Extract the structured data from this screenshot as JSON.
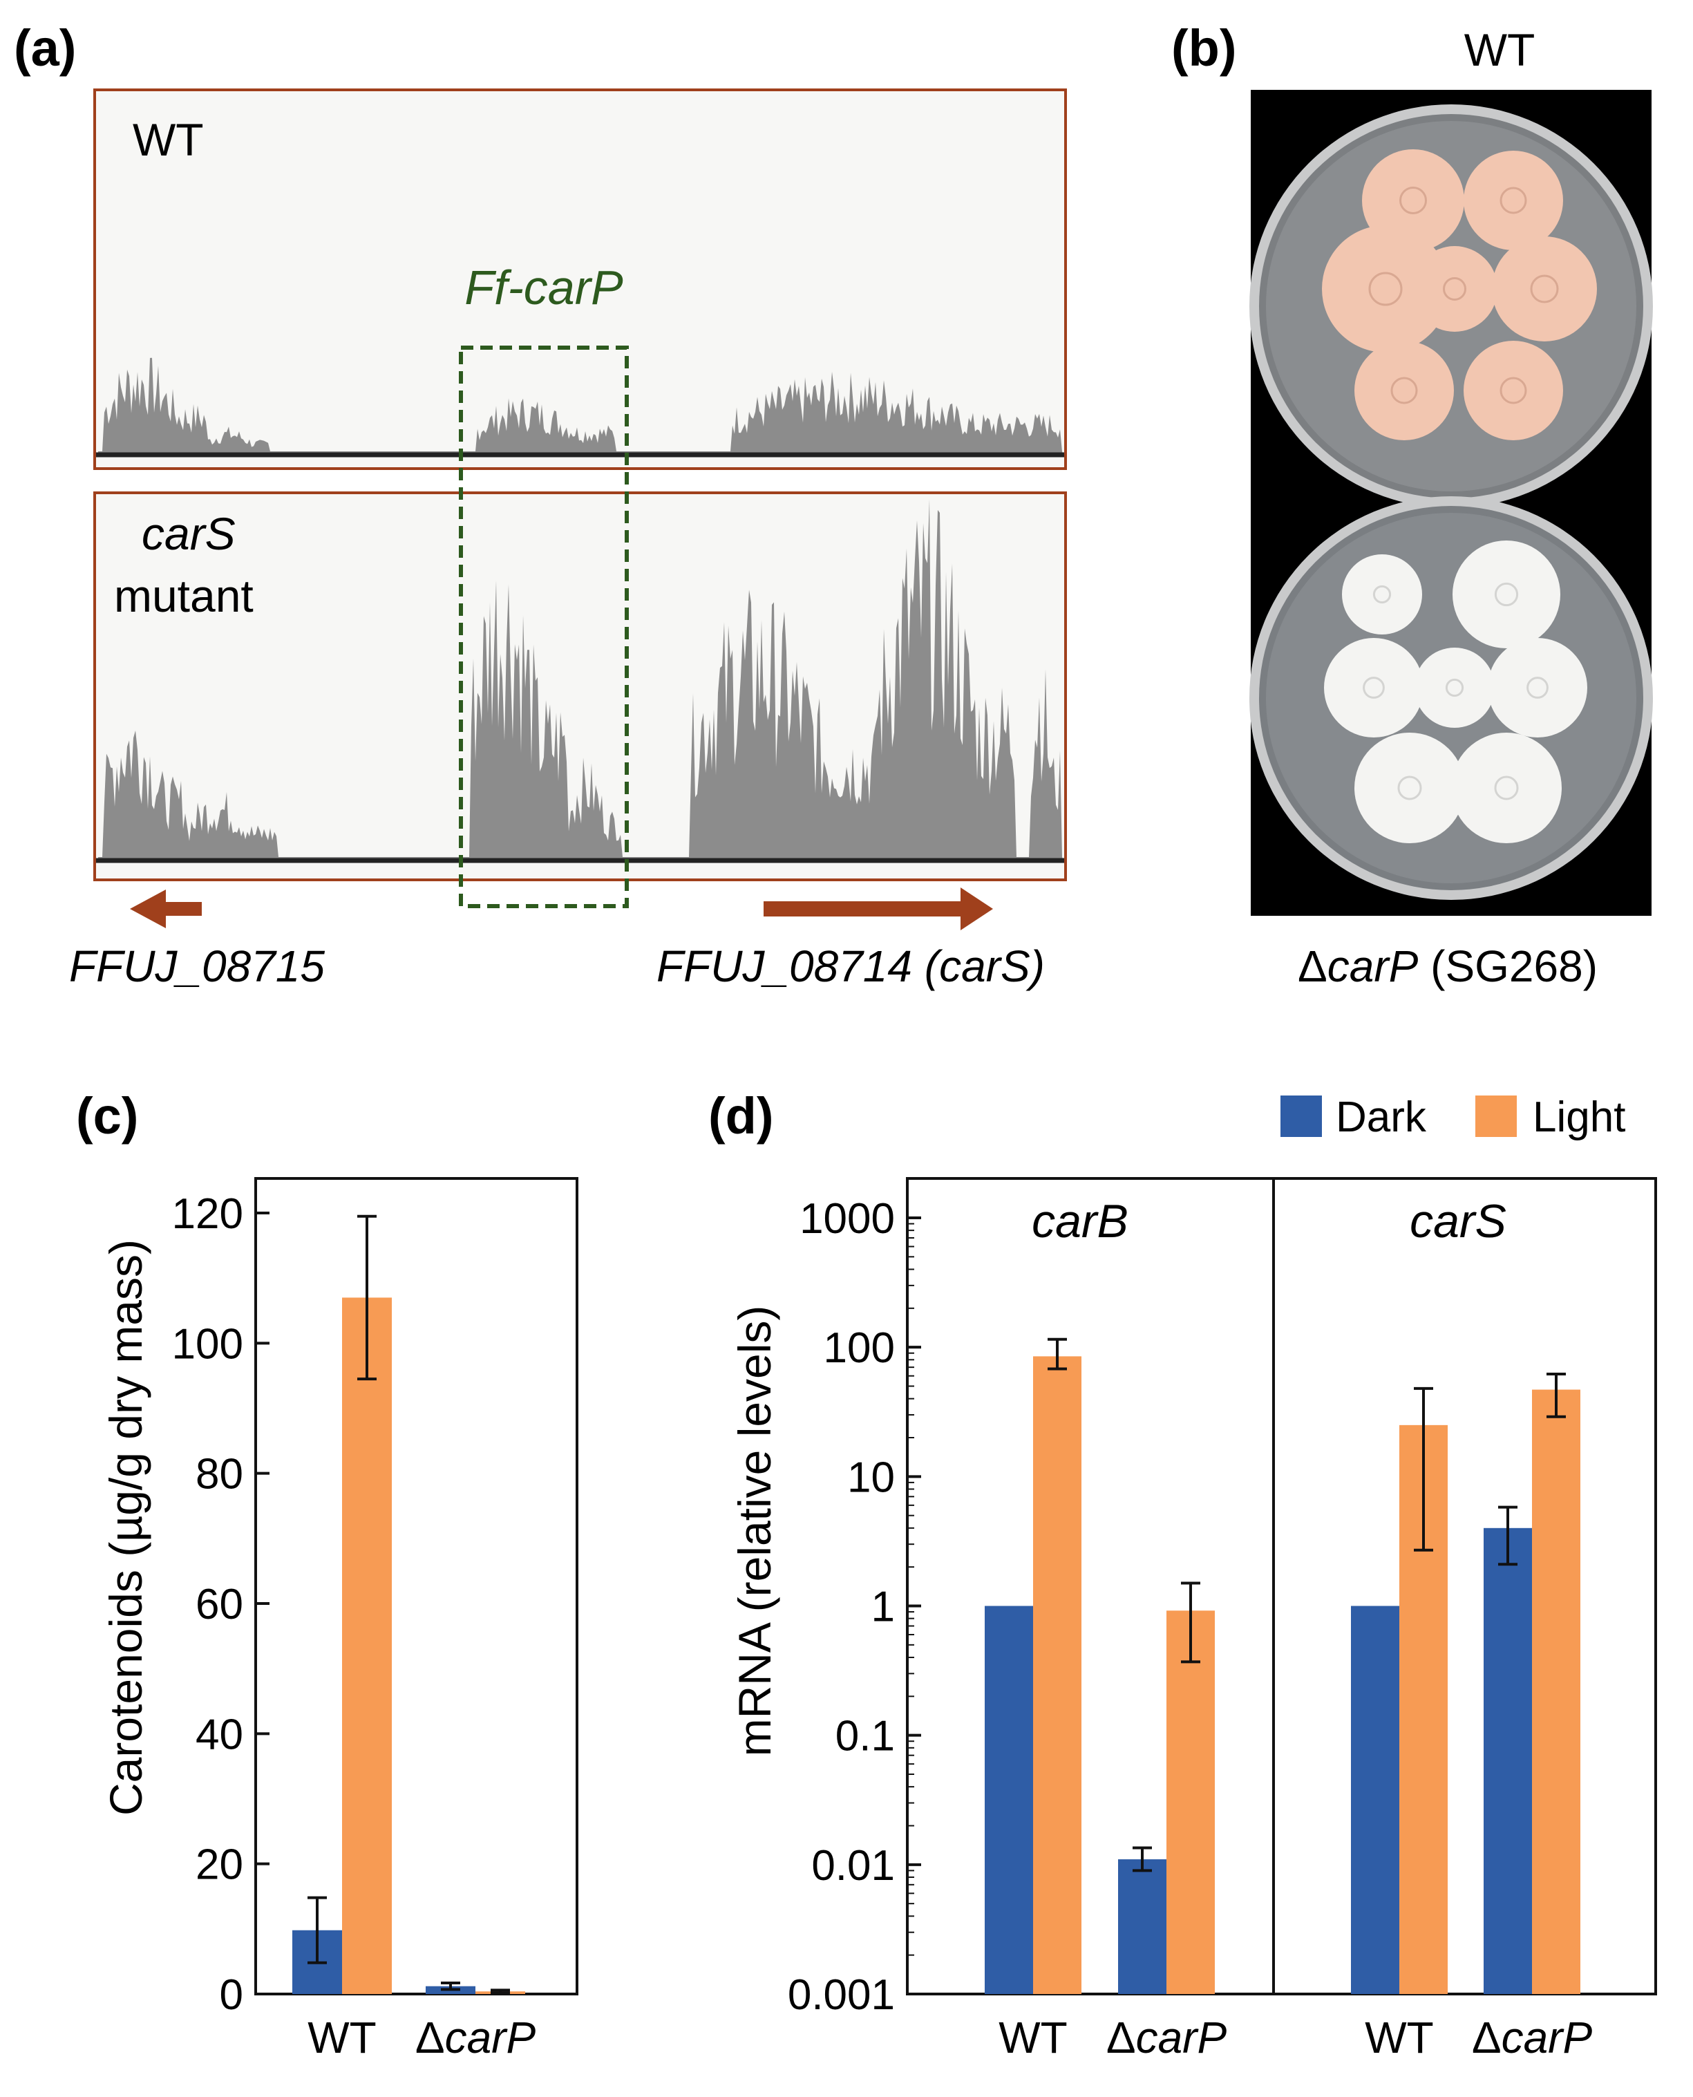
{
  "panel_a": {
    "label": "(a)",
    "track_wt_label": "WT",
    "track_mut_label_line1": "carS",
    "track_mut_label_line2": "mutant",
    "highlight_label": "Ff-carP",
    "gene_left": "FFUJ_08715",
    "gene_right": "FFUJ_08714 (carS)",
    "colors": {
      "frame": "#a0401c",
      "coverage": "#8c8c8c",
      "highlight": "#2d5a1e",
      "arrow": "#a0401c"
    }
  },
  "panel_b": {
    "label": "(b)",
    "top_label": "WT",
    "bottom_label_prefix": "Δ",
    "bottom_label_italic": "carP",
    "bottom_label_suffix": " (SG268)",
    "colors": {
      "wt_colony": "#f2c6b0",
      "mutant_colony": "#f4f4f2",
      "background": "#000000"
    }
  },
  "panel_c": {
    "label": "(c)",
    "colors": {
      "dark": "#2f5da6",
      "light": "#f79b54"
    }
  },
  "panel_d": {
    "label": "(d)",
    "legend": [
      {
        "name": "Dark",
        "color": "#2f5da6"
      },
      {
        "name": "Light",
        "color": "#f79b54"
      }
    ]
  },
  "chart_data": [
    {
      "type": "bar",
      "panel": "(c)",
      "categories": [
        "WT",
        "ΔcarP"
      ],
      "series": [
        {
          "name": "Dark",
          "values": [
            9.8,
            1.2
          ],
          "errors": [
            5.0,
            0.5
          ]
        },
        {
          "name": "Light",
          "values": [
            107,
            0.4
          ],
          "errors": [
            12.5,
            0.2
          ]
        }
      ],
      "ylabel": "Carotenoids (µg/g dry mass)",
      "ylim": [
        0,
        120
      ],
      "yticks": [
        "0",
        "20",
        "40",
        "60",
        "80",
        "100",
        "120"
      ],
      "grid": false
    },
    {
      "type": "bar",
      "panel": "(d)",
      "yscale": "log",
      "ylabel": "mRNA (relative levels)",
      "ylim": [
        0.001,
        1000
      ],
      "yticks": [
        "0.001",
        "0.01",
        "0.1",
        "1",
        "10",
        "100",
        "1000"
      ],
      "legend_position": "top-right",
      "grid": false,
      "subplots": [
        {
          "title": "carB",
          "categories": [
            "WT",
            "ΔcarP"
          ],
          "series": [
            {
              "name": "Dark",
              "values": [
                1.0,
                0.011
              ],
              "err_low": [
                1.0,
                0.009
              ],
              "err_high": [
                1.0,
                0.0135
              ]
            },
            {
              "name": "Light",
              "values": [
                85,
                0.92
              ],
              "err_low": [
                68,
                0.37
              ],
              "err_high": [
                115,
                1.5
              ]
            }
          ]
        },
        {
          "title": "carS",
          "categories": [
            "WT",
            "ΔcarP"
          ],
          "series": [
            {
              "name": "Dark",
              "values": [
                1.0,
                4.0
              ],
              "err_low": [
                1.0,
                2.1
              ],
              "err_high": [
                1.0,
                5.8
              ]
            },
            {
              "name": "Light",
              "values": [
                25,
                47
              ],
              "err_low": [
                2.7,
                29
              ],
              "err_high": [
                48,
                62
              ]
            }
          ]
        }
      ]
    }
  ]
}
